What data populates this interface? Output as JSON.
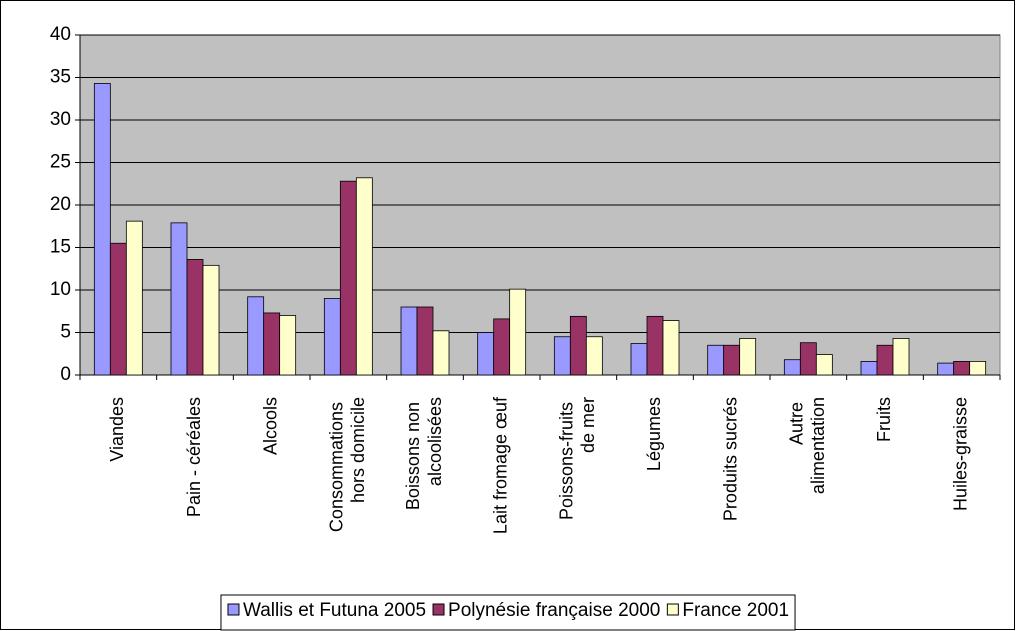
{
  "chart_data": {
    "type": "bar",
    "categories": [
      "Viandes",
      "Pain - céréales",
      "Alcools",
      "Consommations hors domicile",
      "Boissons non alcoolisées",
      "Lait fromage œuf",
      "Poissons-fruits de mer",
      "Légumes",
      "Produits sucrés",
      "Autre alimentation",
      "Fruits",
      "Huiles-graisse"
    ],
    "series": [
      {
        "name": "Wallis et Futuna 2005",
        "color": "#9999ff",
        "values": [
          34.3,
          17.9,
          9.2,
          9.0,
          8.0,
          5.0,
          4.5,
          3.7,
          3.5,
          1.8,
          1.6,
          1.4
        ]
      },
      {
        "name": "Polynésie française 2000",
        "color": "#993366",
        "values": [
          15.5,
          13.6,
          7.3,
          22.8,
          8.0,
          6.6,
          6.9,
          6.9,
          3.5,
          3.8,
          3.5,
          1.6
        ]
      },
      {
        "name": "France 2001",
        "color": "#ffffcc",
        "values": [
          18.1,
          12.9,
          7.0,
          23.2,
          5.2,
          10.1,
          4.5,
          6.4,
          4.3,
          2.4,
          4.3,
          1.6
        ]
      }
    ],
    "ylim": [
      0,
      40
    ],
    "yticks": [
      0,
      5,
      10,
      15,
      20,
      25,
      30,
      35,
      40
    ],
    "grid": true,
    "plot_background": "#c0c0c0",
    "legend": "bottom"
  }
}
